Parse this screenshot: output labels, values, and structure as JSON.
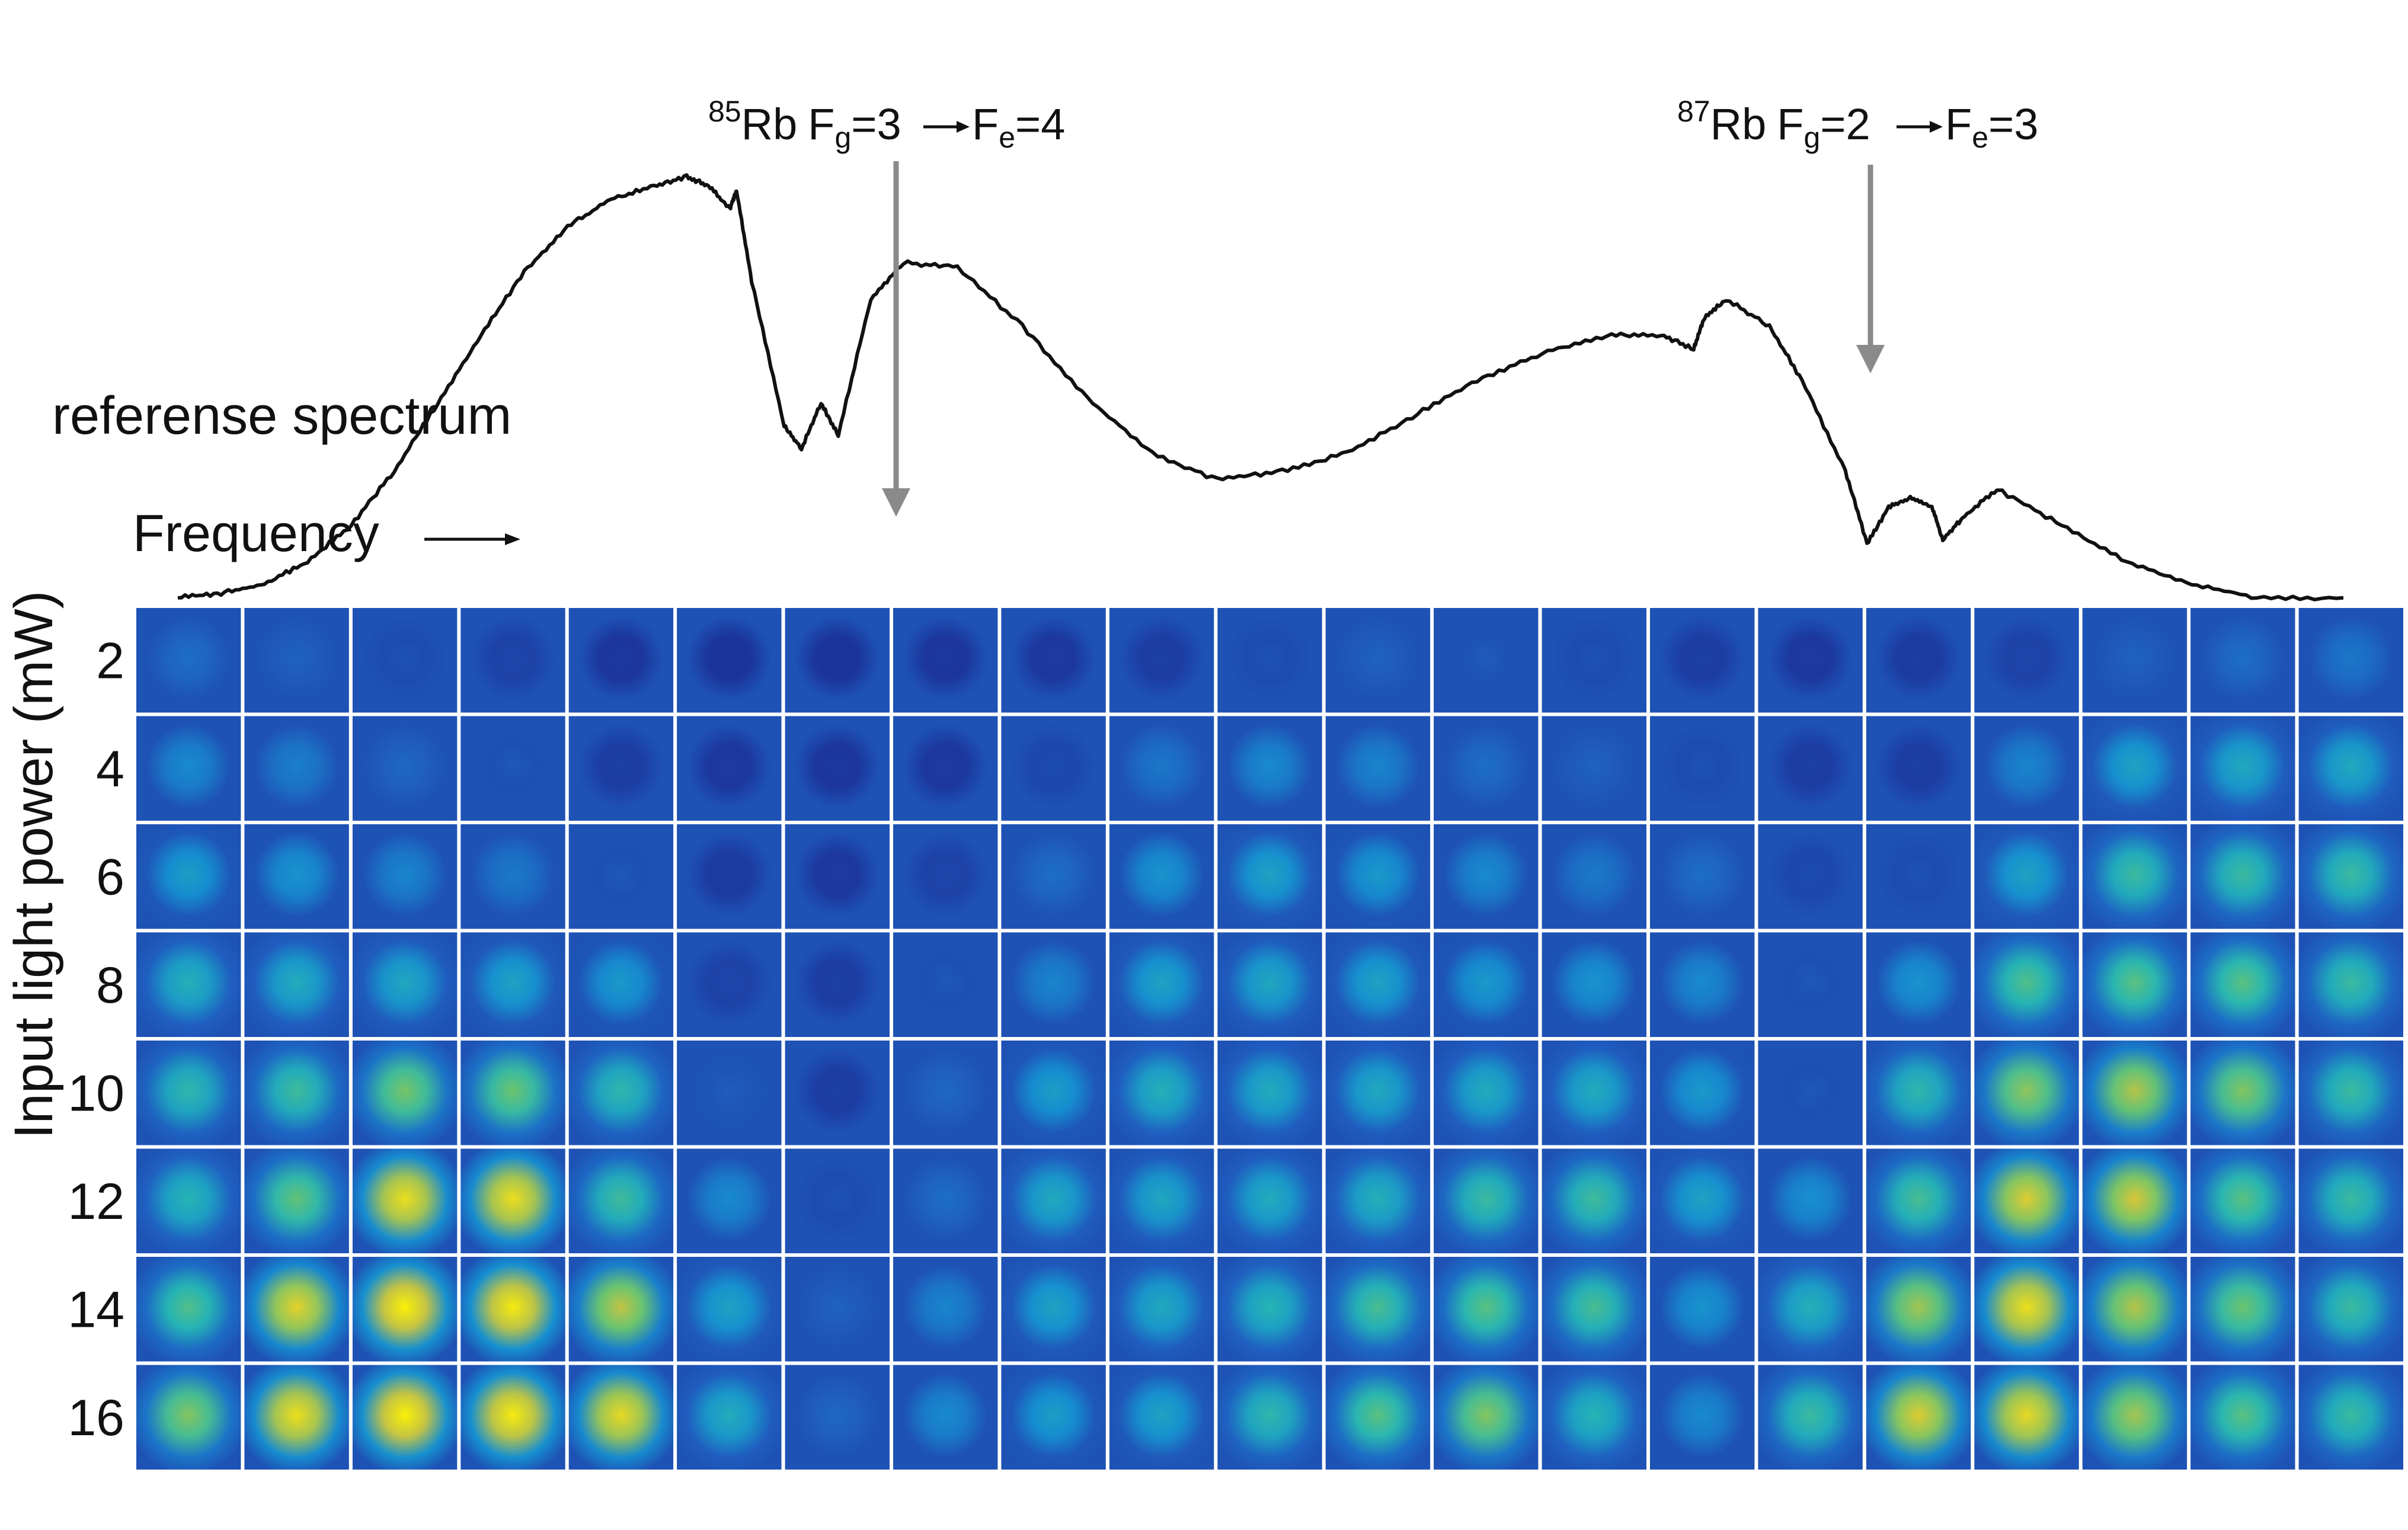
{
  "figure": {
    "annotations": {
      "rb85": {
        "sup": "85",
        "element": "Rb",
        "label_g": "F",
        "sub_g": "g",
        "val_g": "=3",
        "label_e": "F",
        "sub_e": "e",
        "val_e": "=4"
      },
      "rb87": {
        "sup": "87",
        "element": "Rb",
        "label_g": "F",
        "sub_g": "g",
        "val_g": "=2",
        "label_e": "F",
        "sub_e": "e",
        "val_e": "=3"
      }
    },
    "reference_label": "referense spectrum",
    "frequency_label": "Frequency",
    "y_axis_label": "Input light power (mW)",
    "row_labels": [
      "2",
      "4",
      "6",
      "8",
      "10",
      "12",
      "14",
      "16"
    ],
    "grid_columns": 21,
    "spectrum": {
      "points": [
        [
          0,
          0.02
        ],
        [
          0.02,
          0.03
        ],
        [
          0.04,
          0.05
        ],
        [
          0.06,
          0.1
        ],
        [
          0.08,
          0.18
        ],
        [
          0.1,
          0.3
        ],
        [
          0.12,
          0.45
        ],
        [
          0.14,
          0.6
        ],
        [
          0.16,
          0.74
        ],
        [
          0.18,
          0.84
        ],
        [
          0.2,
          0.9
        ],
        [
          0.22,
          0.93
        ],
        [
          0.235,
          0.95
        ],
        [
          0.245,
          0.93
        ],
        [
          0.255,
          0.88
        ],
        [
          0.258,
          0.92
        ],
        [
          0.265,
          0.72
        ],
        [
          0.28,
          0.4
        ],
        [
          0.288,
          0.35
        ],
        [
          0.297,
          0.45
        ],
        [
          0.305,
          0.38
        ],
        [
          0.32,
          0.68
        ],
        [
          0.335,
          0.76
        ],
        [
          0.36,
          0.75
        ],
        [
          0.39,
          0.62
        ],
        [
          0.42,
          0.46
        ],
        [
          0.45,
          0.34
        ],
        [
          0.48,
          0.28
        ],
        [
          0.51,
          0.3
        ],
        [
          0.54,
          0.34
        ],
        [
          0.57,
          0.42
        ],
        [
          0.6,
          0.5
        ],
        [
          0.63,
          0.56
        ],
        [
          0.66,
          0.6
        ],
        [
          0.685,
          0.6
        ],
        [
          0.7,
          0.57
        ],
        [
          0.705,
          0.64
        ],
        [
          0.715,
          0.68
        ],
        [
          0.735,
          0.62
        ],
        [
          0.75,
          0.5
        ],
        [
          0.77,
          0.3
        ],
        [
          0.78,
          0.14
        ],
        [
          0.79,
          0.22
        ],
        [
          0.8,
          0.24
        ],
        [
          0.81,
          0.22
        ],
        [
          0.815,
          0.15
        ],
        [
          0.825,
          0.2
        ],
        [
          0.84,
          0.26
        ],
        [
          0.87,
          0.18
        ],
        [
          0.9,
          0.1
        ],
        [
          0.93,
          0.05
        ],
        [
          0.96,
          0.02
        ],
        [
          1,
          0.02
        ]
      ]
    },
    "colormap": [
      "#1b2f98",
      "#1f5fc0",
      "#168ed0",
      "#26b5b4",
      "#6fc56a",
      "#d8c43a",
      "#fff600"
    ],
    "intensity_grid": [
      [
        0.22,
        0.18,
        0.12,
        0.08,
        0.03,
        0.02,
        0.02,
        0.03,
        0.04,
        0.06,
        0.12,
        0.18,
        0.15,
        0.12,
        0.06,
        0.04,
        0.05,
        0.08,
        0.18,
        0.22,
        0.25
      ],
      [
        0.32,
        0.28,
        0.2,
        0.14,
        0.06,
        0.04,
        0.03,
        0.04,
        0.1,
        0.25,
        0.32,
        0.3,
        0.22,
        0.18,
        0.12,
        0.06,
        0.06,
        0.3,
        0.42,
        0.45,
        0.45
      ],
      [
        0.4,
        0.36,
        0.3,
        0.26,
        0.14,
        0.05,
        0.04,
        0.08,
        0.22,
        0.36,
        0.42,
        0.38,
        0.32,
        0.26,
        0.22,
        0.1,
        0.12,
        0.42,
        0.55,
        0.55,
        0.55
      ],
      [
        0.48,
        0.46,
        0.44,
        0.42,
        0.38,
        0.08,
        0.06,
        0.14,
        0.3,
        0.42,
        0.44,
        0.42,
        0.38,
        0.36,
        0.32,
        0.14,
        0.36,
        0.6,
        0.62,
        0.62,
        0.55
      ],
      [
        0.52,
        0.56,
        0.68,
        0.66,
        0.52,
        0.16,
        0.06,
        0.2,
        0.4,
        0.48,
        0.46,
        0.45,
        0.46,
        0.46,
        0.38,
        0.14,
        0.52,
        0.72,
        0.78,
        0.7,
        0.55
      ],
      [
        0.5,
        0.64,
        0.92,
        0.92,
        0.56,
        0.32,
        0.12,
        0.22,
        0.45,
        0.44,
        0.46,
        0.48,
        0.55,
        0.56,
        0.42,
        0.34,
        0.58,
        0.86,
        0.84,
        0.62,
        0.55
      ],
      [
        0.6,
        0.88,
        0.98,
        0.96,
        0.8,
        0.42,
        0.18,
        0.3,
        0.42,
        0.45,
        0.5,
        0.58,
        0.62,
        0.58,
        0.36,
        0.48,
        0.75,
        0.92,
        0.78,
        0.66,
        0.55
      ],
      [
        0.7,
        0.92,
        0.98,
        0.96,
        0.9,
        0.46,
        0.2,
        0.32,
        0.4,
        0.42,
        0.52,
        0.62,
        0.7,
        0.5,
        0.32,
        0.55,
        0.86,
        0.9,
        0.75,
        0.62,
        0.55
      ]
    ]
  }
}
